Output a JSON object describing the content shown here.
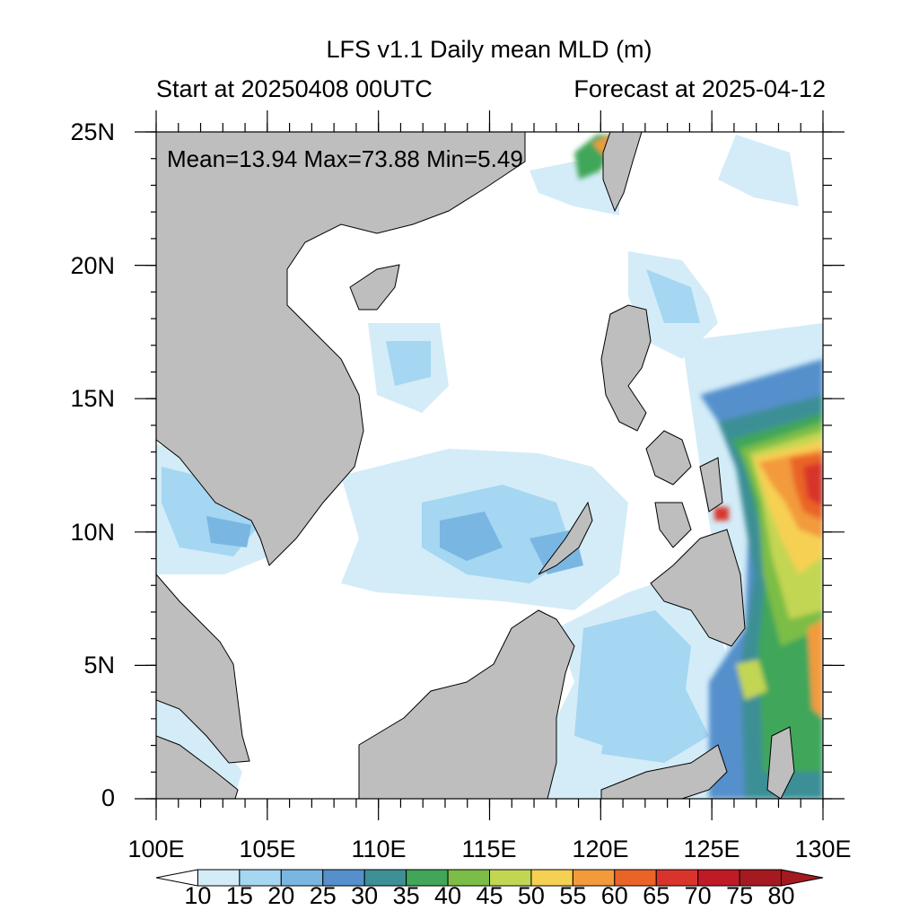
{
  "title": "LFS v1.1 Daily mean MLD (m)",
  "subtitle_left": "Start at 20250408 00UTC",
  "subtitle_right": "Forecast at 2025-04-12",
  "stats": "Mean=13.94  Max=73.88  Min=5.49",
  "y_labels": [
    "25N",
    "20N",
    "15N",
    "10N",
    "5N",
    "0"
  ],
  "x_labels": [
    "100E",
    "105E",
    "110E",
    "115E",
    "120E",
    "125E",
    "130E"
  ],
  "colorbar": {
    "labels": [
      "10",
      "15",
      "20",
      "25",
      "30",
      "35",
      "40",
      "45",
      "50",
      "55",
      "60",
      "65",
      "70",
      "75",
      "80"
    ],
    "colors": [
      "#ffffff",
      "#d3ecf8",
      "#a5d6f2",
      "#7ab6e2",
      "#5590cc",
      "#3e8f96",
      "#41a65a",
      "#7bbd46",
      "#c3d653",
      "#f6d052",
      "#f39a3c",
      "#ea6428",
      "#d8342c",
      "#c01a26",
      "#a51920"
    ]
  },
  "land_color": "#bebebe",
  "map_extent": {
    "lon": [
      100,
      130
    ],
    "lat": [
      0,
      25
    ]
  }
}
